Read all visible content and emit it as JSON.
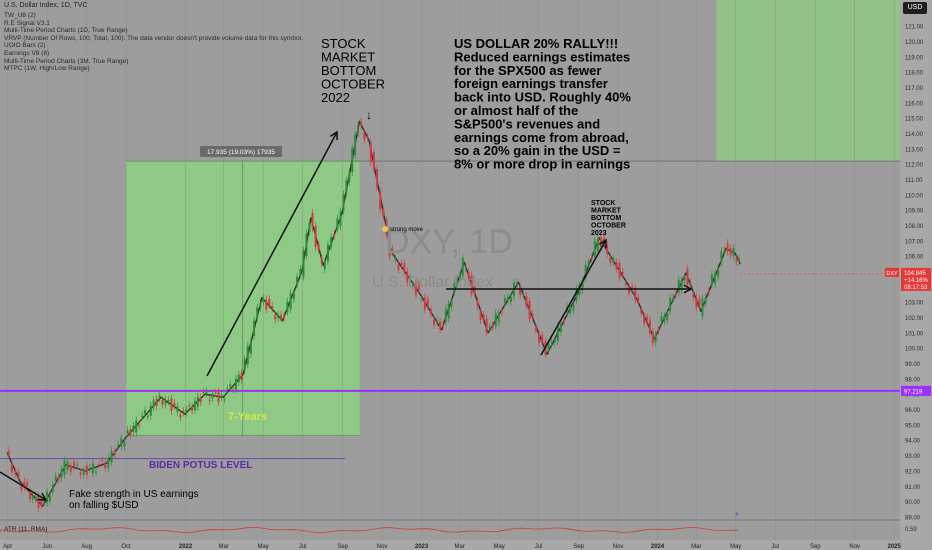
{
  "header": {
    "title": "U.S. Dollar Index, 1D, TVC",
    "currency_button": "USD",
    "indicators": [
      "TW_U8 (2)",
      "R.E Signal V3.1",
      "Multi-Time Period Charts (1D, True Range)",
      "VRVP (Number Of Rows, 100, Total, 100): The data vendor doesn't provide volume data for this symbol.",
      "UOIO Bars (2)",
      "Earnings V8 (8)",
      "Multi-Time Period Charts (3M, True Range)",
      "MTPC (1W, High/Low Range)"
    ]
  },
  "watermark": {
    "symbol": "DXY, 1D",
    "name": "U.S. Dollar Index"
  },
  "annotations": {
    "stock_bottom_2022": [
      "STOCK",
      "MARKET",
      "BOTTOM",
      "OCTOBER",
      "2022"
    ],
    "arrow_down": "↓",
    "usd_rally": [
      "US DOLLAR 20% RALLY!!!",
      "Reduced earnings estimates",
      "for the SPX500 as fewer",
      "foreign earnings transfer",
      "back into USD. Roughly 40%",
      "or almost half of the",
      "S&P500's revenues and",
      "earnings come from abroad,",
      "so a 20% gain in the USD =",
      "8% or more drop in earnings"
    ],
    "stock_bottom_2023": [
      "STOCK",
      "MARKET",
      "BOTTOM",
      "OCTOBER",
      "2023"
    ],
    "strong_move": "strong move",
    "measure_label": "17.935 (19.03%) 17935",
    "years_label": "7-Years",
    "biden_label": "BIDEN POTUS LEVEL",
    "fake_strength": [
      "Fake strength in US earnings",
      "on falling $USD"
    ],
    "atr_label": "ATR (11, RMA)"
  },
  "chart_data": {
    "type": "line",
    "title": "U.S. Dollar Index, 1D, TVC",
    "xlabel": "",
    "ylabel": "",
    "ylim": [
      88.8,
      122.7
    ],
    "yticks": [
      89.0,
      90.0,
      91.0,
      92.0,
      93.0,
      94.0,
      95.0,
      96.0,
      97.0,
      98.0,
      99.0,
      100.0,
      101.0,
      102.0,
      103.0,
      104.0,
      105.0,
      106.0,
      107.0,
      108.0,
      109.0,
      110.0,
      111.0,
      112.0,
      113.0,
      114.0,
      115.0,
      116.0,
      117.0,
      118.0,
      119.0,
      120.0,
      121.0,
      122.0
    ],
    "x_tick_labels": [
      "Apr",
      "Jun",
      "Aug",
      "Oct",
      "2022",
      "Mar",
      "May",
      "Jul",
      "Sep",
      "Nov",
      "2023",
      "Mar",
      "May",
      "Jul",
      "Sep",
      "Nov",
      "2024",
      "Mar",
      "May",
      "Jul",
      "Sep",
      "Nov",
      "2025"
    ],
    "x_tick_dates": [
      "2021-04-01",
      "2021-06-01",
      "2021-08-01",
      "2021-10-01",
      "2022-01-01",
      "2022-03-01",
      "2022-05-01",
      "2022-07-01",
      "2022-09-01",
      "2022-11-01",
      "2023-01-01",
      "2023-03-01",
      "2023-05-01",
      "2023-07-01",
      "2023-09-01",
      "2023-11-01",
      "2024-01-01",
      "2024-03-01",
      "2024-05-01",
      "2024-07-01",
      "2024-09-01",
      "2024-11-01",
      "2025-01-01"
    ],
    "series": [
      {
        "name": "DXY",
        "points": [
          [
            "2021-03-31",
            93.2
          ],
          [
            "2021-04-20",
            91.3
          ],
          [
            "2021-05-25",
            89.7
          ],
          [
            "2021-06-30",
            92.4
          ],
          [
            "2021-07-30",
            92.0
          ],
          [
            "2021-09-01",
            92.5
          ],
          [
            "2021-10-01",
            94.2
          ],
          [
            "2021-11-24",
            96.8
          ],
          [
            "2021-12-31",
            95.7
          ],
          [
            "2022-01-31",
            97.0
          ],
          [
            "2022-02-28",
            96.8
          ],
          [
            "2022-03-31",
            98.3
          ],
          [
            "2022-04-29",
            103.3
          ],
          [
            "2022-05-31",
            101.8
          ],
          [
            "2022-06-30",
            105.0
          ],
          [
            "2022-07-14",
            108.5
          ],
          [
            "2022-08-02",
            105.4
          ],
          [
            "2022-08-31",
            108.8
          ],
          [
            "2022-09-27",
            114.8
          ],
          [
            "2022-10-12",
            113.5
          ],
          [
            "2022-11-15",
            106.3
          ],
          [
            "2022-12-30",
            103.5
          ],
          [
            "2023-02-01",
            101.2
          ],
          [
            "2023-03-08",
            105.6
          ],
          [
            "2023-04-14",
            101.0
          ],
          [
            "2023-05-31",
            104.3
          ],
          [
            "2023-07-14",
            99.6
          ],
          [
            "2023-08-31",
            103.6
          ],
          [
            "2023-10-03",
            107.2
          ],
          [
            "2023-11-30",
            103.2
          ],
          [
            "2023-12-27",
            100.6
          ],
          [
            "2024-02-14",
            104.9
          ],
          [
            "2024-03-08",
            102.4
          ],
          [
            "2024-04-16",
            106.5
          ],
          [
            "2024-04-30",
            106.2
          ],
          [
            "2024-05-08",
            105.5
          ]
        ]
      }
    ],
    "last_price": {
      "symbol": "DXY",
      "value": 104.845,
      "change": "+14.16%",
      "timer": "08:17:53"
    },
    "biden_level": 92.8,
    "horizontal_level": {
      "value": 97.219,
      "label": "97.219",
      "color": "#9b30ff"
    },
    "measure_box": {
      "start_date": "2021-10-01",
      "end_date": "2022-09-27",
      "low": 94.3,
      "high": 112.2
    },
    "resistance_zone": {
      "start_date": "2024-04-01",
      "low": 112.2,
      "high": 122.7
    },
    "atr": {
      "label": "ATR (11, RMA)",
      "value": 0.59
    },
    "colors": {
      "background": "#9d9d9d",
      "up": "#2e8b3a",
      "down": "#d23c3c",
      "measure_box": "#8ad97d",
      "horizontal_level": "#9b30ff",
      "biden_line": "#5c4fa8",
      "last_price": "#e53935",
      "axis_bg": "#a8a8a8"
    }
  }
}
